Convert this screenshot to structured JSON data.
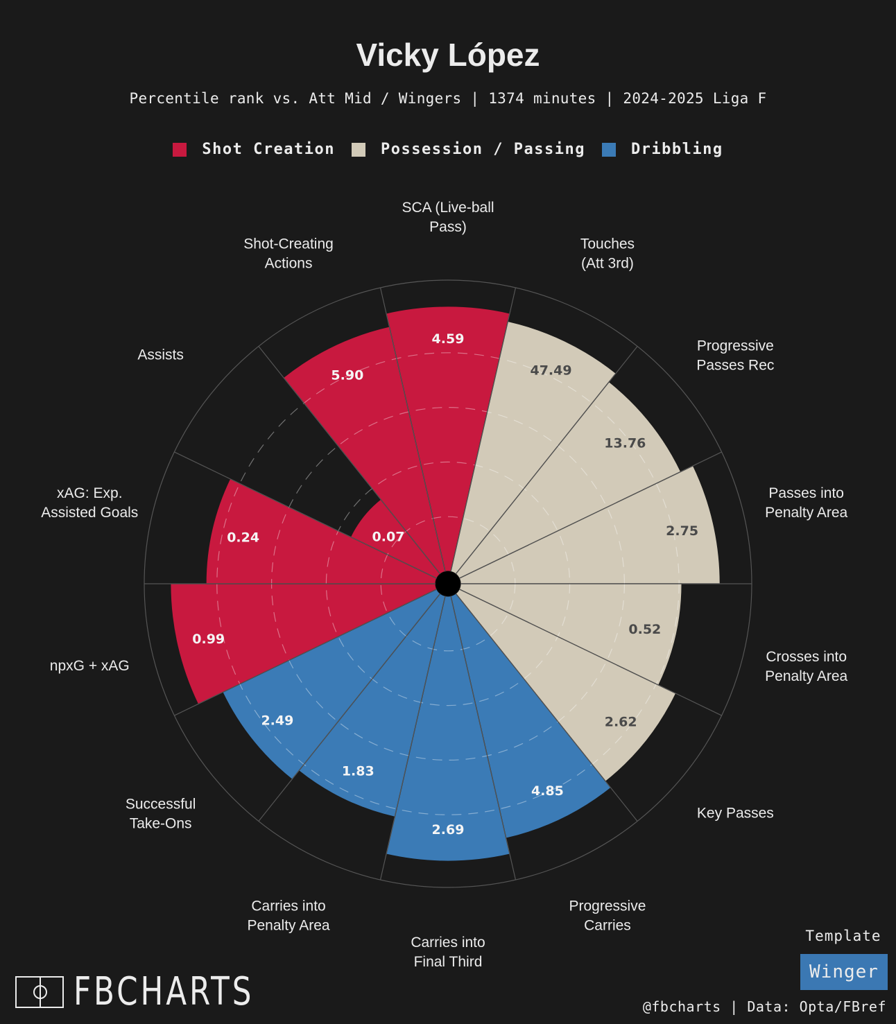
{
  "header": {
    "title": "Vicky López",
    "subtitle": "Percentile rank vs. Att Mid / Wingers | 1374 minutes | 2024-2025 Liga F"
  },
  "legend": [
    {
      "label": "Shot Creation",
      "color": "#c8193f"
    },
    {
      "label": "Possession / Passing",
      "color": "#d2cab8"
    },
    {
      "label": "Dribbling",
      "color": "#3b7bb6"
    }
  ],
  "colors": {
    "background": "#1a1a1a",
    "grid": "#555555",
    "value_text_dark": "#4a4a4a",
    "value_text_light": "#f5f5f5"
  },
  "chart_data": {
    "type": "pizza",
    "title": "Vicky López",
    "r_range": [
      0,
      100
    ],
    "segments": [
      {
        "label": "SCA (Live-ball Pass)",
        "value_label": "4.59",
        "percentile": 97,
        "group": "Shot Creation"
      },
      {
        "label": "Touches (Att 3rd)",
        "value_label": "47.49",
        "percentile": 94,
        "group": "Possession / Passing"
      },
      {
        "label": "Progressive Passes Rec",
        "value_label": "13.76",
        "percentile": 90,
        "group": "Possession / Passing"
      },
      {
        "label": "Passes into Penalty Area",
        "value_label": "2.75",
        "percentile": 95,
        "group": "Possession / Passing"
      },
      {
        "label": "Crosses into Penalty Area",
        "value_label": "0.52",
        "percentile": 81,
        "group": "Possession / Passing"
      },
      {
        "label": "Key Passes",
        "value_label": "2.62",
        "percentile": 88,
        "group": "Possession / Passing"
      },
      {
        "label": "Progressive Carries",
        "value_label": "4.85",
        "percentile": 91,
        "group": "Dribbling"
      },
      {
        "label": "Carries into Final Third",
        "value_label": "2.69",
        "percentile": 97,
        "group": "Dribbling"
      },
      {
        "label": "Carries into Penalty Area",
        "value_label": "1.83",
        "percentile": 83,
        "group": "Dribbling"
      },
      {
        "label": "Successful Take-Ons",
        "value_label": "2.49",
        "percentile": 87,
        "group": "Dribbling"
      },
      {
        "label": "npxG + xAG",
        "value_label": "0.99",
        "percentile": 97,
        "group": "Shot Creation"
      },
      {
        "label": "xAG: Exp. Assisted Goals",
        "value_label": "0.24",
        "percentile": 84,
        "group": "Shot Creation"
      },
      {
        "label": "Assists",
        "value_label": "0.07",
        "percentile": 35,
        "group": "Shot Creation"
      },
      {
        "label": "Shot-Creating Actions",
        "value_label": "5.90",
        "percentile": 92,
        "group": "Shot Creation"
      }
    ]
  },
  "template": {
    "label": "Template",
    "badge": "Winger"
  },
  "branding": {
    "logo_text": "FBCHARTS",
    "footer": "@fbcharts | Data: Opta/FBref"
  }
}
